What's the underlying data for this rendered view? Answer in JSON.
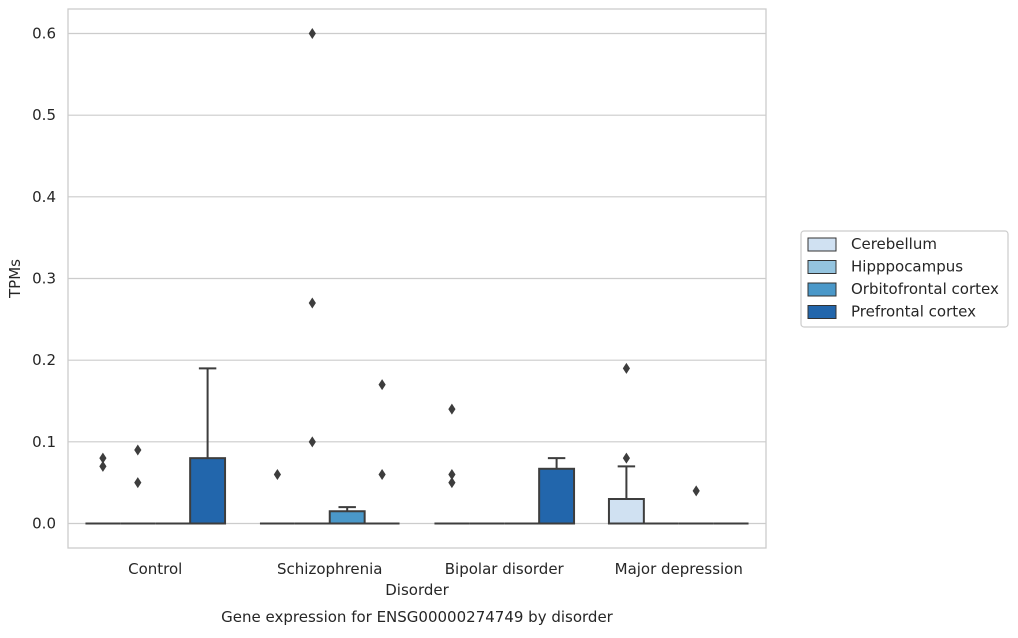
{
  "chart_data": {
    "type": "box",
    "ylabel": "TPMs",
    "xlabel": "Disorder",
    "caption": "Gene expression for ENSG00000274749 by disorder",
    "ylim": [
      -0.03,
      0.63
    ],
    "yticks": [
      "0.0",
      "0.1",
      "0.2",
      "0.3",
      "0.4",
      "0.5",
      "0.6"
    ],
    "grid": "horizontal",
    "legend_position": "right",
    "categories": [
      "Control",
      "Schizophrenia",
      "Bipolar disorder",
      "Major depression"
    ],
    "series": [
      {
        "name": "Cerebellum",
        "color": "#d0e1f2",
        "boxes": [
          {
            "min": 0,
            "q1": 0,
            "median": 0,
            "q3": 0,
            "max": 0,
            "outliers": [
              0.07,
              0.08
            ]
          },
          {
            "min": 0,
            "q1": 0,
            "median": 0,
            "q3": 0,
            "max": 0,
            "outliers": [
              0.06
            ]
          },
          {
            "min": 0,
            "q1": 0,
            "median": 0,
            "q3": 0,
            "max": 0,
            "outliers": [
              0.05,
              0.06,
              0.14
            ]
          },
          {
            "min": 0,
            "q1": 0,
            "median": 0,
            "q3": 0.03,
            "max": 0.07,
            "outliers": [
              0.08,
              0.19
            ]
          }
        ]
      },
      {
        "name": "Hipppocampus",
        "color": "#94c4df",
        "boxes": [
          {
            "min": 0,
            "q1": 0,
            "median": 0,
            "q3": 0,
            "max": 0,
            "outliers": [
              0.05,
              0.09
            ]
          },
          {
            "min": 0,
            "q1": 0,
            "median": 0,
            "q3": 0,
            "max": 0,
            "outliers": [
              0.1,
              0.27,
              0.6
            ]
          },
          {
            "min": 0,
            "q1": 0,
            "median": 0,
            "q3": 0,
            "max": 0,
            "outliers": []
          },
          {
            "min": 0,
            "q1": 0,
            "median": 0,
            "q3": 0,
            "max": 0,
            "outliers": []
          }
        ]
      },
      {
        "name": "Orbitofrontal cortex",
        "color": "#4a98c9",
        "boxes": [
          {
            "min": 0,
            "q1": 0,
            "median": 0,
            "q3": 0,
            "max": 0,
            "outliers": []
          },
          {
            "min": 0,
            "q1": 0,
            "median": 0,
            "q3": 0.015,
            "max": 0.02,
            "outliers": []
          },
          {
            "min": 0,
            "q1": 0,
            "median": 0,
            "q3": 0,
            "max": 0,
            "outliers": []
          },
          {
            "min": 0,
            "q1": 0,
            "median": 0,
            "q3": 0,
            "max": 0,
            "outliers": [
              0.04
            ]
          }
        ]
      },
      {
        "name": "Prefrontal cortex",
        "color": "#2266ac",
        "boxes": [
          {
            "min": 0,
            "q1": 0,
            "median": 0,
            "q3": 0.08,
            "max": 0.19,
            "outliers": []
          },
          {
            "min": 0,
            "q1": 0,
            "median": 0,
            "q3": 0,
            "max": 0,
            "outliers": [
              0.06,
              0.17
            ]
          },
          {
            "min": 0,
            "q1": 0,
            "median": 0,
            "q3": 0.067,
            "max": 0.08,
            "outliers": []
          },
          {
            "min": 0,
            "q1": 0,
            "median": 0,
            "q3": 0,
            "max": 0,
            "outliers": []
          }
        ]
      }
    ]
  }
}
